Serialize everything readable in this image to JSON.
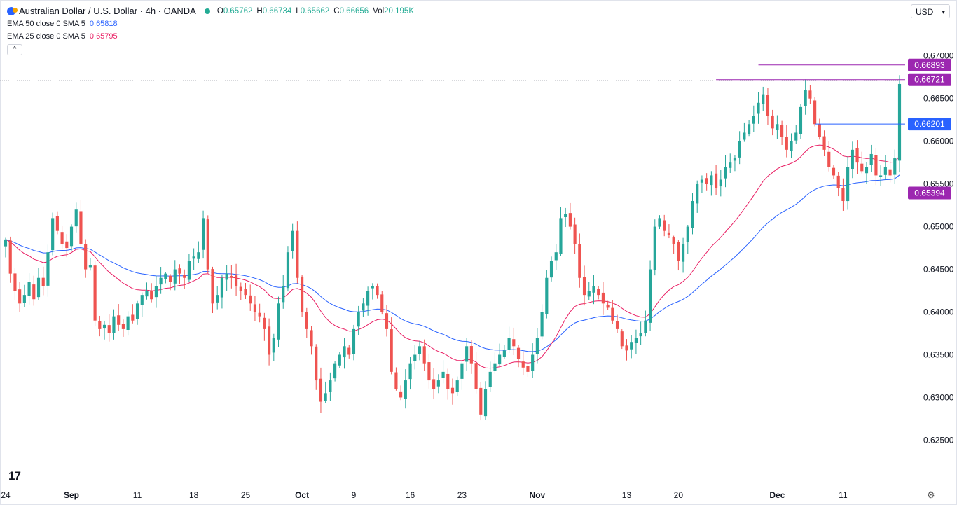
{
  "header": {
    "symbol": "Australian Dollar / U.S. Dollar · 4h · OANDA",
    "open_label": "O",
    "open": "0.65762",
    "high_label": "H",
    "high": "0.66734",
    "low_label": "L",
    "low": "0.65662",
    "close_label": "C",
    "close": "0.66656",
    "vol_label": "Vol",
    "vol": "20.195K"
  },
  "indicators": [
    {
      "label": "EMA 50 close 0 SMA 5",
      "value": "0.65818",
      "color": "#2962ff"
    },
    {
      "label": "EMA 25 close 0 SMA 5",
      "value": "0.65795",
      "color": "#e91e63"
    }
  ],
  "collapse_icon": "^",
  "currency": "USD",
  "watermark": "17",
  "colors": {
    "up": "#26a69a",
    "down": "#ef5350",
    "ema50": "#2962ff",
    "ema25": "#e91e63",
    "level": "#9c27b0",
    "level_blue": "#2962ff"
  },
  "chart_data": {
    "type": "candlestick",
    "title": "Australian Dollar / U.S. Dollar · 4h · OANDA",
    "ylim": [
      0.622,
      0.6717
    ],
    "y_ticks": [
      "0.62500",
      "0.63000",
      "0.63500",
      "0.64000",
      "0.64500",
      "0.65000",
      "0.65500",
      "0.66000",
      "0.66500",
      "0.67000"
    ],
    "x_ticks": [
      {
        "label": "24",
        "idx": 0
      },
      {
        "label": "Sep",
        "idx": 14
      },
      {
        "label": "11",
        "idx": 28
      },
      {
        "label": "18",
        "idx": 40
      },
      {
        "label": "25",
        "idx": 51
      },
      {
        "label": "Oct",
        "idx": 63
      },
      {
        "label": "9",
        "idx": 74
      },
      {
        "label": "16",
        "idx": 86
      },
      {
        "label": "23",
        "idx": 97
      },
      {
        "label": "Nov",
        "idx": 113
      },
      {
        "label": "13",
        "idx": 132
      },
      {
        "label": "20",
        "idx": 143
      },
      {
        "label": "Dec",
        "idx": 164
      },
      {
        "label": "11",
        "idx": 178
      },
      {
        "label": "",
        "idx": 184
      }
    ],
    "candles_closes": [
      0.6485,
      0.6445,
      0.6425,
      0.641,
      0.642,
      0.6435,
      0.6415,
      0.644,
      0.643,
      0.647,
      0.651,
      0.6495,
      0.648,
      0.6475,
      0.65,
      0.652,
      0.648,
      0.645,
      0.6455,
      0.639,
      0.638,
      0.6385,
      0.6375,
      0.6395,
      0.6385,
      0.638,
      0.6395,
      0.639,
      0.641,
      0.642,
      0.6425,
      0.6415,
      0.643,
      0.644,
      0.6445,
      0.6435,
      0.645,
      0.6445,
      0.644,
      0.646,
      0.6465,
      0.647,
      0.651,
      0.645,
      0.641,
      0.642,
      0.644,
      0.6445,
      0.644,
      0.643,
      0.6425,
      0.642,
      0.641,
      0.64,
      0.6395,
      0.638,
      0.635,
      0.637,
      0.641,
      0.643,
      0.647,
      0.6495,
      0.644,
      0.64,
      0.638,
      0.636,
      0.632,
      0.6295,
      0.6305,
      0.632,
      0.634,
      0.635,
      0.636,
      0.635,
      0.638,
      0.64,
      0.641,
      0.6425,
      0.643,
      0.642,
      0.64,
      0.638,
      0.633,
      0.631,
      0.63,
      0.632,
      0.634,
      0.635,
      0.636,
      0.634,
      0.632,
      0.631,
      0.632,
      0.633,
      0.631,
      0.6305,
      0.632,
      0.634,
      0.636,
      0.634,
      0.631,
      0.628,
      0.631,
      0.633,
      0.634,
      0.635,
      0.6355,
      0.637,
      0.636,
      0.6345,
      0.6335,
      0.633,
      0.635,
      0.637,
      0.64,
      0.644,
      0.646,
      0.647,
      0.651,
      0.6515,
      0.65,
      0.648,
      0.644,
      0.642,
      0.6425,
      0.643,
      0.642,
      0.641,
      0.6405,
      0.639,
      0.638,
      0.636,
      0.6355,
      0.6365,
      0.637,
      0.6375,
      0.639,
      0.645,
      0.65,
      0.651,
      0.6495,
      0.649,
      0.648,
      0.646,
      0.648,
      0.65,
      0.653,
      0.655,
      0.6555,
      0.655,
      0.656,
      0.6545,
      0.6555,
      0.657,
      0.6575,
      0.658,
      0.66,
      0.661,
      0.662,
      0.663,
      0.6645,
      0.6655,
      0.663,
      0.6615,
      0.662,
      0.6605,
      0.659,
      0.66,
      0.661,
      0.664,
      0.666,
      0.665,
      0.662,
      0.6605,
      0.659,
      0.657,
      0.656,
      0.6545,
      0.653,
      0.657,
      0.659,
      0.6575,
      0.6565,
      0.657,
      0.6585,
      0.656,
      0.656,
      0.657,
      0.656,
      0.658,
      0.6667
    ],
    "levels": [
      {
        "value": "0.66893",
        "price": 0.66893,
        "color": "#9c27b0",
        "x_from_idx": 160
      },
      {
        "value": "0.66721",
        "price": 0.66721,
        "color": "#9c27b0",
        "x_from_idx": 151
      },
      {
        "value": "0.66201",
        "price": 0.66201,
        "color": "#2962ff",
        "x_from_idx": 172
      },
      {
        "value": "0.65394",
        "price": 0.65394,
        "color": "#9c27b0",
        "x_from_idx": 175
      }
    ],
    "current_price": 0.6671,
    "series": [
      {
        "name": "EMA 50 close 0 SMA 5",
        "color": "#2962ff",
        "period": 50
      },
      {
        "name": "EMA 25 close 0 SMA 5",
        "color": "#e91e63",
        "period": 25
      }
    ]
  }
}
